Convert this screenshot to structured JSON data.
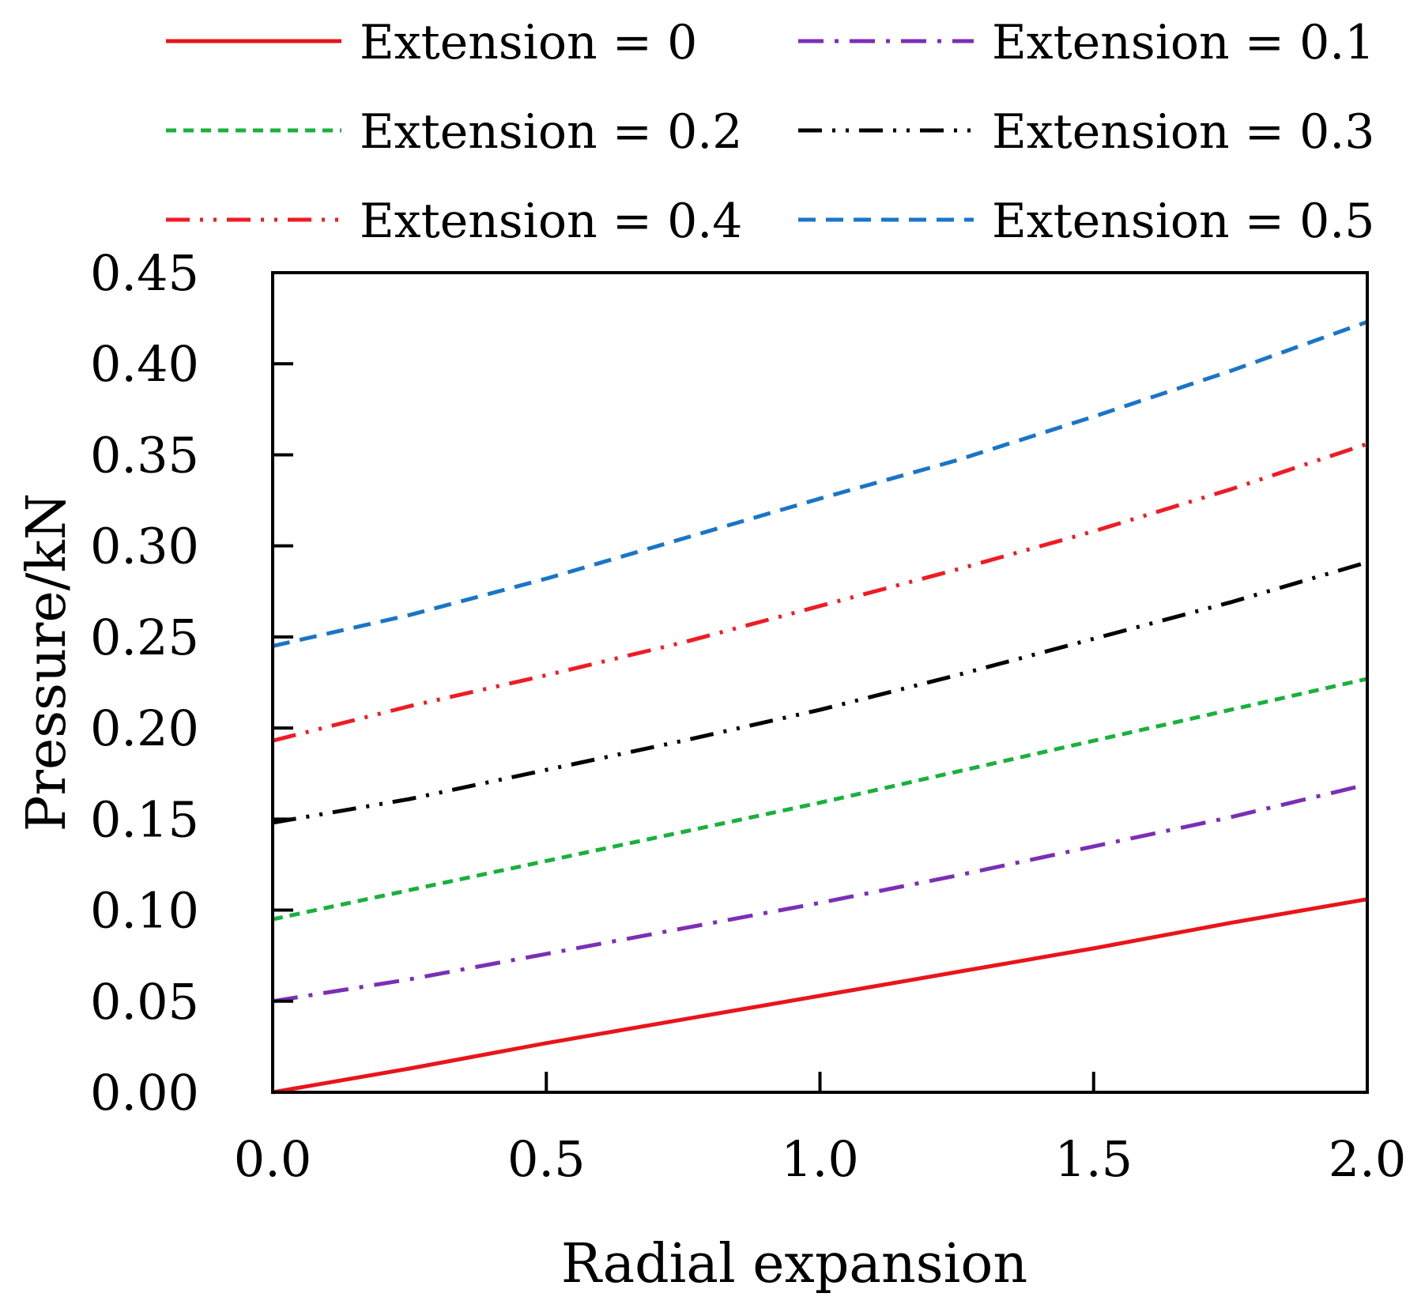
{
  "chart_data": {
    "type": "line",
    "title": "",
    "xlabel": "Radial expansion",
    "ylabel": "Pressure/kN",
    "xlim": [
      0.0,
      2.0
    ],
    "ylim": [
      0.0,
      0.45
    ],
    "xticks": [
      0.0,
      0.5,
      1.0,
      1.5,
      2.0
    ],
    "xtick_labels": [
      "0.0",
      "0.5",
      "1.0",
      "1.5",
      "2.0"
    ],
    "yticks": [
      0.0,
      0.05,
      0.1,
      0.15,
      0.2,
      0.25,
      0.3,
      0.35,
      0.4,
      0.45
    ],
    "ytick_labels": [
      "0.00",
      "0.05",
      "0.10",
      "0.15",
      "0.20",
      "0.25",
      "0.30",
      "0.35",
      "0.40",
      "0.45"
    ],
    "grid": false,
    "legend_position": "top",
    "x": [
      0.0,
      0.25,
      0.5,
      0.75,
      1.0,
      1.25,
      1.5,
      1.75,
      2.0
    ],
    "series": [
      {
        "name": "Extension = 0",
        "color": "#e8151b",
        "dash": "solid",
        "values": [
          0.0,
          0.013,
          0.027,
          0.04,
          0.053,
          0.066,
          0.079,
          0.093,
          0.106
        ]
      },
      {
        "name": "Extension = 0.1",
        "color": "#7b2fb5",
        "dash": "dashdot",
        "values": [
          0.05,
          0.062,
          0.076,
          0.09,
          0.104,
          0.119,
          0.135,
          0.151,
          0.169
        ]
      },
      {
        "name": "Extension = 0.2",
        "color": "#19b13c",
        "dash": "dash-short",
        "values": [
          0.095,
          0.111,
          0.127,
          0.143,
          0.159,
          0.176,
          0.193,
          0.21,
          0.227
        ]
      },
      {
        "name": "Extension = 0.3",
        "color": "#000000",
        "dash": "dashdotdot",
        "values": [
          0.148,
          0.161,
          0.177,
          0.193,
          0.21,
          0.229,
          0.249,
          0.269,
          0.291
        ]
      },
      {
        "name": "Extension = 0.4",
        "color": "#ee1c24",
        "dash": "dashdotdot",
        "values": [
          0.193,
          0.212,
          0.229,
          0.247,
          0.267,
          0.287,
          0.308,
          0.331,
          0.356
        ]
      },
      {
        "name": "Extension = 0.5",
        "color": "#1a75c8",
        "dash": "dash",
        "values": [
          0.245,
          0.262,
          0.282,
          0.304,
          0.326,
          0.347,
          0.371,
          0.396,
          0.423
        ]
      }
    ]
  }
}
